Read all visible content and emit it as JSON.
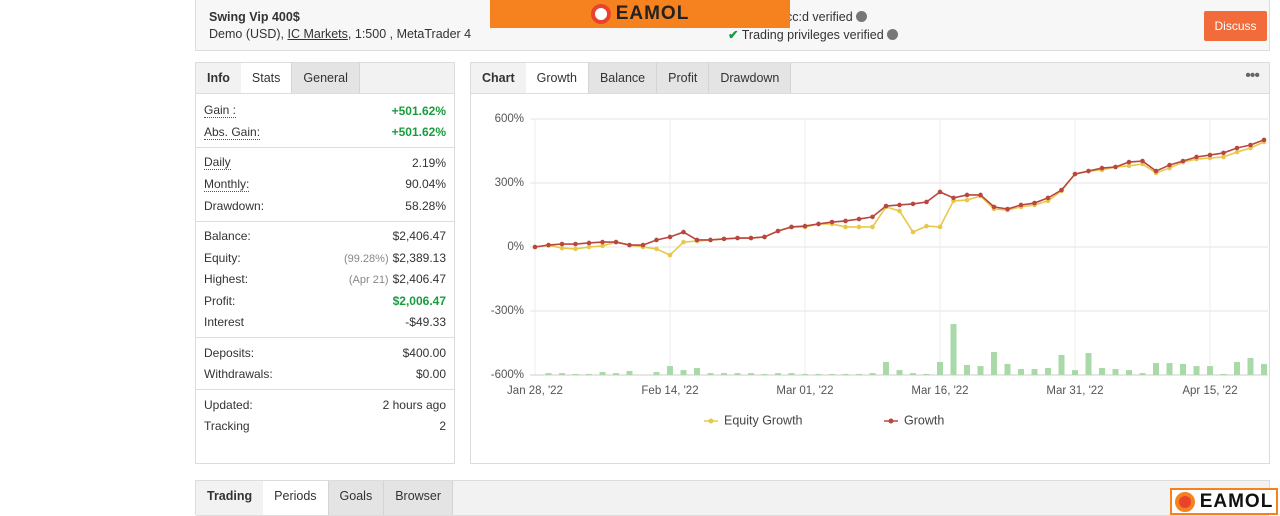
{
  "header": {
    "title": "Swing Vip 400$",
    "subtitle": [
      "Demo (USD), ",
      "IC Markets",
      ", 1:500 , MetaTrader 4"
    ],
    "verified": [
      "cc:d verified",
      "Trading privileges verified"
    ],
    "button": "Discuss"
  },
  "banner": {
    "logo": "EAMOL"
  },
  "footer_logo": "EAMOL",
  "stats_tabs": [
    "Info",
    "Stats",
    "General"
  ],
  "stats_groups": [
    [
      {
        "label": "Gain :",
        "value": "+501.62%",
        "color": "#1a9c3e",
        "underlined": true
      },
      {
        "label": "Abs. Gain:",
        "value": "+501.62%",
        "color": "#1a9c3e",
        "underlined": true
      }
    ],
    [
      {
        "label": "Daily",
        "value": "2.19%",
        "underlined": true
      },
      {
        "label": "Monthly:",
        "value": "90.04%",
        "underlined": true
      },
      {
        "label": "Drawdown:",
        "value": "58.28%"
      }
    ],
    [
      {
        "label": "Balance:",
        "value": "$2,406.47"
      },
      {
        "label": "Equity:",
        "note": "(99.28%)",
        "value": "$2,389.13"
      },
      {
        "label": "Highest:",
        "note": "(Apr 21)",
        "value": "$2,406.47"
      },
      {
        "label": "Profit:",
        "value": "$2,006.47",
        "color": "#1a9c3e"
      },
      {
        "label": "Interest",
        "value": "-$49.33"
      }
    ],
    [
      {
        "label": "Deposits:",
        "value": "$400.00"
      },
      {
        "label": "Withdrawals:",
        "value": "$0.00"
      }
    ],
    [
      {
        "label": "Updated:",
        "value": "2 hours ago"
      },
      {
        "label": "Tracking",
        "value": "2"
      }
    ]
  ],
  "chart_tabs": [
    "Chart",
    "Growth",
    "Balance",
    "Profit",
    "Drawdown"
  ],
  "bottom_tabs": [
    "Trading",
    "Periods",
    "Goals",
    "Browser"
  ],
  "chart_data": {
    "type": "line",
    "categories": [
      "Jan 28, '22",
      null,
      null,
      null,
      null,
      null,
      null,
      null,
      null,
      null,
      "Feb 14, '22",
      null,
      null,
      null,
      null,
      null,
      null,
      null,
      null,
      null,
      "Mar 01, '22",
      null,
      null,
      null,
      null,
      null,
      null,
      null,
      null,
      null,
      "Mar 16, '22",
      null,
      null,
      null,
      null,
      null,
      null,
      null,
      null,
      null,
      "Mar 31, '22",
      null,
      null,
      null,
      null,
      null,
      null,
      null,
      null,
      null,
      "Apr 15, '22",
      null,
      null,
      null,
      null
    ],
    "series": [
      {
        "name": "Equity Growth",
        "color": "#e8c84a",
        "values": [
          0,
          9,
          -5,
          -9,
          0,
          5,
          23,
          9,
          0,
          -9,
          -38,
          23,
          28,
          33,
          38,
          42,
          42,
          47,
          75,
          94,
          94,
          108,
          108,
          94,
          94,
          94,
          188,
          169,
          70,
          98,
          94,
          216,
          220,
          239,
          178,
          173,
          188,
          197,
          216,
          263,
          342,
          356,
          361,
          375,
          380,
          389,
          347,
          370,
          398,
          412,
          417,
          422,
          445,
          464,
          492
        ]
      },
      {
        "name": "Growth",
        "color": "#b9473f",
        "values": [
          0,
          9,
          14,
          14,
          19,
          23,
          23,
          9,
          9,
          33,
          47,
          70,
          33,
          33,
          38,
          42,
          42,
          47,
          75,
          94,
          98,
          108,
          117,
          122,
          131,
          141,
          192,
          197,
          202,
          211,
          258,
          230,
          244,
          244,
          188,
          178,
          197,
          206,
          230,
          267,
          342,
          356,
          370,
          375,
          398,
          403,
          356,
          384,
          403,
          422,
          431,
          441,
          464,
          478,
          502
        ]
      },
      {
        "type": "bar",
        "color": "#a9d9a9",
        "values": [
          null,
          -591,
          -591,
          -595,
          -595,
          -586,
          -591,
          -581,
          null,
          -586,
          -558,
          -577,
          -567,
          -591,
          -591,
          -591,
          -591,
          -595,
          -591,
          -591,
          -595,
          -595,
          -595,
          -595,
          -595,
          -591,
          -539,
          -577,
          -591,
          -595,
          -539,
          -361,
          -553,
          -558,
          -492,
          -548,
          -572,
          -572,
          -567,
          -506,
          -577,
          -497,
          -567,
          -572,
          -577,
          -591,
          -544,
          -544,
          -548,
          -558,
          -558,
          -595,
          -539,
          -520,
          -548
        ]
      }
    ],
    "ylim": [
      -600,
      600
    ],
    "yticks": [
      {
        "value": 600,
        "label": "600%"
      },
      {
        "value": 300,
        "label": "300%"
      },
      {
        "value": 0,
        "label": "0%"
      },
      {
        "value": -300,
        "label": "-300%"
      },
      {
        "value": -600,
        "label": "-600%"
      }
    ],
    "grid": true,
    "legend": "bottom"
  }
}
